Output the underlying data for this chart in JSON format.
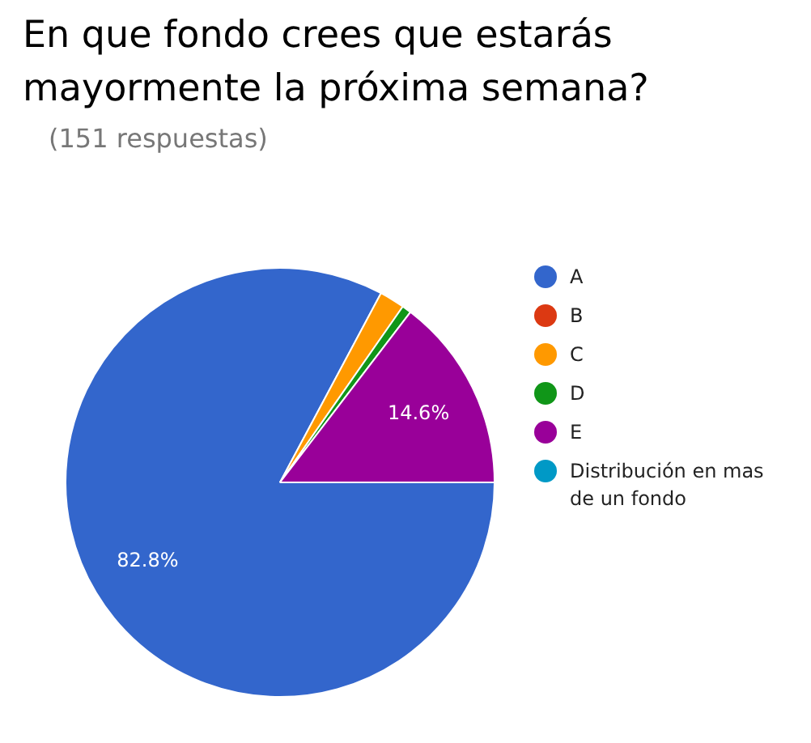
{
  "chart_data": {
    "type": "pie",
    "title": "En que fondo crees que estarás mayormente la próxima semana?",
    "subtitle": "(151 respuestas)",
    "categories": [
      "A",
      "B",
      "C",
      "D",
      "E",
      "Distribución en mas de un fondo"
    ],
    "values": [
      82.8,
      0,
      1.9,
      0.7,
      14.6,
      0
    ],
    "colors": [
      "#3366cc",
      "#dc3912",
      "#ff9900",
      "#109618",
      "#990099",
      "#0099c6"
    ],
    "value_labels": [
      "82.8%",
      null,
      null,
      null,
      "14.6%",
      null
    ],
    "legend": "right"
  }
}
